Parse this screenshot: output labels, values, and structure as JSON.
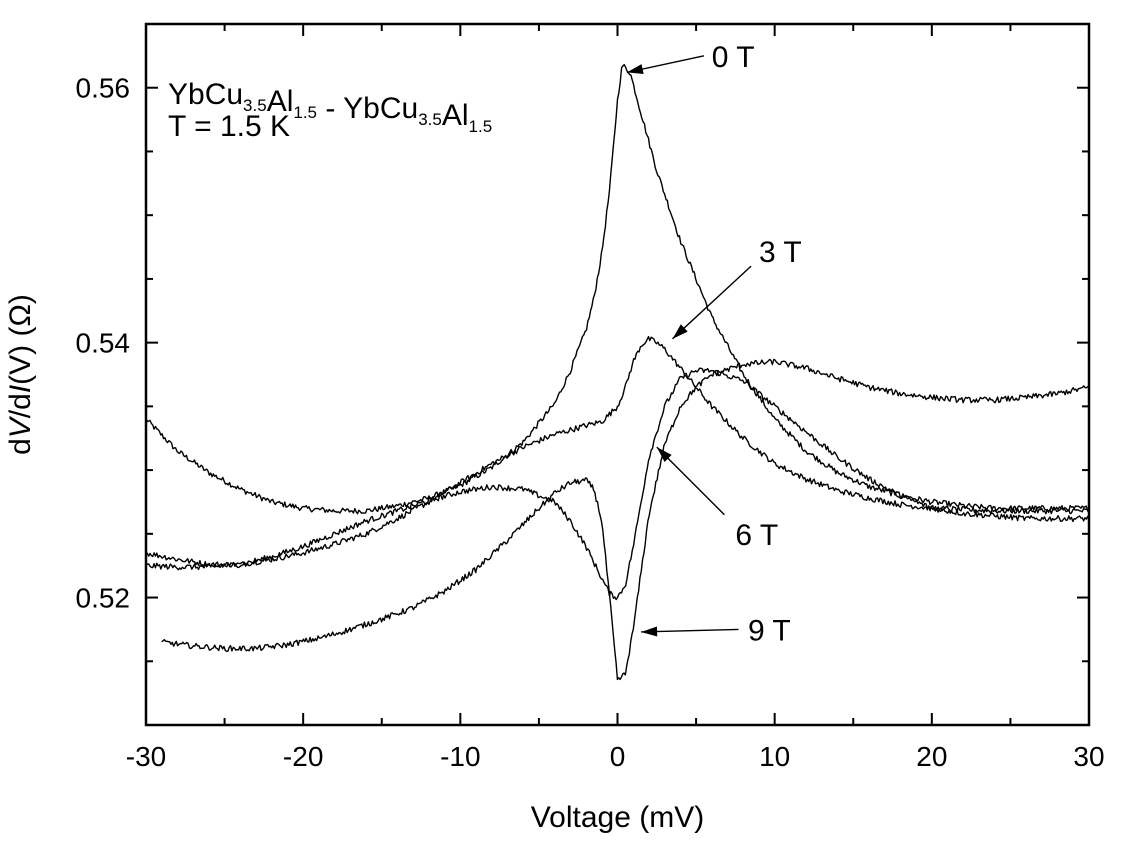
{
  "chart_data": {
    "type": "line",
    "title": "",
    "xlabel": "Voltage (mV)",
    "ylabel_parts": [
      "d",
      "V",
      "/d",
      "I",
      "(V)  (Ω)"
    ],
    "xlim": [
      -30,
      30
    ],
    "ylim": [
      0.51,
      0.565
    ],
    "x_ticks": [
      -30,
      -20,
      -10,
      0,
      10,
      20,
      30
    ],
    "x_tick_labels": [
      "-30",
      "-20",
      "-10",
      "0",
      "10",
      "20",
      "30"
    ],
    "y_ticks": [
      0.52,
      0.54,
      0.56
    ],
    "y_tick_labels": [
      "0.52",
      "0.54",
      "0.56"
    ],
    "grid": false,
    "legend": "none",
    "sample_label": {
      "parts": [
        {
          "t": "YbCu",
          "sub": false
        },
        {
          "t": "3.5",
          "sub": true
        },
        {
          "t": "Al",
          "sub": false
        },
        {
          "t": "1.5",
          "sub": true
        },
        {
          "t": " - YbCu",
          "sub": false
        },
        {
          "t": "3.5",
          "sub": true
        },
        {
          "t": "Al",
          "sub": false
        },
        {
          "t": "1.5",
          "sub": true
        }
      ],
      "temperature": "T = 1.5 K"
    },
    "series": [
      {
        "label": "0 T",
        "points": [
          [
            -30,
            0.534
          ],
          [
            -28,
            0.5315
          ],
          [
            -26,
            0.5298
          ],
          [
            -24,
            0.5285
          ],
          [
            -22,
            0.5275
          ],
          [
            -20,
            0.527
          ],
          [
            -18,
            0.5268
          ],
          [
            -16,
            0.5268
          ],
          [
            -14,
            0.5272
          ],
          [
            -12,
            0.5278
          ],
          [
            -10,
            0.5288
          ],
          [
            -8,
            0.5302
          ],
          [
            -6,
            0.5322
          ],
          [
            -4,
            0.5352
          ],
          [
            -3,
            0.5378
          ],
          [
            -2,
            0.541
          ],
          [
            -1.5,
            0.5435
          ],
          [
            -1,
            0.547
          ],
          [
            -0.5,
            0.552
          ],
          [
            0,
            0.559
          ],
          [
            0.3,
            0.5618
          ],
          [
            0.8,
            0.5612
          ],
          [
            1.5,
            0.558
          ],
          [
            2.5,
            0.5535
          ],
          [
            4,
            0.548
          ],
          [
            6,
            0.542
          ],
          [
            8,
            0.5375
          ],
          [
            10,
            0.534
          ],
          [
            12,
            0.5315
          ],
          [
            14,
            0.5298
          ],
          [
            16,
            0.5287
          ],
          [
            18,
            0.528
          ],
          [
            20,
            0.5275
          ],
          [
            22,
            0.5272
          ],
          [
            24,
            0.527
          ],
          [
            26,
            0.527
          ],
          [
            28,
            0.527
          ],
          [
            30,
            0.527
          ]
        ]
      },
      {
        "label": "3 T",
        "points": [
          [
            -30,
            0.5235
          ],
          [
            -28,
            0.523
          ],
          [
            -26,
            0.5226
          ],
          [
            -24,
            0.5226
          ],
          [
            -22,
            0.523
          ],
          [
            -20,
            0.5235
          ],
          [
            -18,
            0.5242
          ],
          [
            -16,
            0.525
          ],
          [
            -14,
            0.5262
          ],
          [
            -12,
            0.5275
          ],
          [
            -10,
            0.529
          ],
          [
            -8,
            0.5305
          ],
          [
            -6,
            0.5318
          ],
          [
            -4,
            0.5328
          ],
          [
            -2,
            0.5335
          ],
          [
            -1,
            0.5338
          ],
          [
            0,
            0.535
          ],
          [
            0.5,
            0.5365
          ],
          [
            1,
            0.5385
          ],
          [
            1.5,
            0.5398
          ],
          [
            2,
            0.5403
          ],
          [
            2.5,
            0.54
          ],
          [
            3,
            0.5395
          ],
          [
            4,
            0.538
          ],
          [
            5,
            0.5365
          ],
          [
            6,
            0.535
          ],
          [
            8,
            0.5325
          ],
          [
            10,
            0.5305
          ],
          [
            12,
            0.5293
          ],
          [
            14,
            0.5284
          ],
          [
            16,
            0.5278
          ],
          [
            18,
            0.5273
          ],
          [
            20,
            0.527
          ],
          [
            22,
            0.5269
          ],
          [
            24,
            0.5268
          ],
          [
            26,
            0.5268
          ],
          [
            28,
            0.5268
          ],
          [
            30,
            0.5268
          ]
        ]
      },
      {
        "label": "6 T",
        "points": [
          [
            -30,
            0.5225
          ],
          [
            -28,
            0.5224
          ],
          [
            -26,
            0.5224
          ],
          [
            -24,
            0.5226
          ],
          [
            -22,
            0.5232
          ],
          [
            -20,
            0.524
          ],
          [
            -18,
            0.525
          ],
          [
            -16,
            0.526
          ],
          [
            -14,
            0.5268
          ],
          [
            -12,
            0.5276
          ],
          [
            -10,
            0.5283
          ],
          [
            -8,
            0.5287
          ],
          [
            -6,
            0.5285
          ],
          [
            -4,
            0.5275
          ],
          [
            -3,
            0.526
          ],
          [
            -2,
            0.524
          ],
          [
            -1,
            0.5215
          ],
          [
            -0.5,
            0.5203
          ],
          [
            0,
            0.52
          ],
          [
            0.5,
            0.521
          ],
          [
            1,
            0.524
          ],
          [
            1.5,
            0.5275
          ],
          [
            2,
            0.531
          ],
          [
            3,
            0.535
          ],
          [
            4,
            0.5372
          ],
          [
            5,
            0.5378
          ],
          [
            6,
            0.5378
          ],
          [
            8,
            0.537
          ],
          [
            10,
            0.535
          ],
          [
            12,
            0.533
          ],
          [
            14,
            0.531
          ],
          [
            16,
            0.5293
          ],
          [
            18,
            0.528
          ],
          [
            20,
            0.527
          ],
          [
            22,
            0.5266
          ],
          [
            24,
            0.5264
          ],
          [
            26,
            0.5262
          ],
          [
            28,
            0.5262
          ],
          [
            30,
            0.5262
          ]
        ]
      },
      {
        "label": "9 T",
        "points": [
          [
            -29,
            0.5165
          ],
          [
            -27,
            0.5162
          ],
          [
            -25,
            0.516
          ],
          [
            -23,
            0.516
          ],
          [
            -21,
            0.5163
          ],
          [
            -19,
            0.5168
          ],
          [
            -17,
            0.5175
          ],
          [
            -15,
            0.5183
          ],
          [
            -13,
            0.5192
          ],
          [
            -11,
            0.5205
          ],
          [
            -9,
            0.5222
          ],
          [
            -7,
            0.5245
          ],
          [
            -5,
            0.527
          ],
          [
            -4,
            0.5282
          ],
          [
            -3,
            0.529
          ],
          [
            -2,
            0.5292
          ],
          [
            -1.5,
            0.5285
          ],
          [
            -1,
            0.526
          ],
          [
            -0.5,
            0.52
          ],
          [
            0,
            0.5135
          ],
          [
            0.5,
            0.514
          ],
          [
            1,
            0.5175
          ],
          [
            1.5,
            0.522
          ],
          [
            2,
            0.5265
          ],
          [
            3,
            0.532
          ],
          [
            4,
            0.535
          ],
          [
            5,
            0.5365
          ],
          [
            6,
            0.5375
          ],
          [
            8,
            0.5383
          ],
          [
            10,
            0.5385
          ],
          [
            12,
            0.538
          ],
          [
            14,
            0.5372
          ],
          [
            16,
            0.5365
          ],
          [
            18,
            0.536
          ],
          [
            20,
            0.5357
          ],
          [
            22,
            0.5355
          ],
          [
            24,
            0.5355
          ],
          [
            26,
            0.5357
          ],
          [
            28,
            0.536
          ],
          [
            30,
            0.5365
          ]
        ]
      }
    ],
    "annotations": [
      {
        "text": "0 T",
        "tip": [
          0.6,
          0.5612
        ],
        "tail": [
          5.5,
          0.5625
        ],
        "text_at": [
          6,
          0.5625
        ]
      },
      {
        "text": "3 T",
        "tip": [
          3.5,
          0.5403
        ],
        "tail": [
          8.5,
          0.546
        ],
        "text_at": [
          9,
          0.5472
        ]
      },
      {
        "text": "6 T",
        "tip": [
          2.5,
          0.5318
        ],
        "tail": [
          6.8,
          0.5265
        ],
        "text_at": [
          7.5,
          0.525
        ]
      },
      {
        "text": "9 T",
        "tip": [
          1.5,
          0.5173
        ],
        "tail": [
          7.7,
          0.5175
        ],
        "text_at": [
          8.3,
          0.5175
        ]
      }
    ]
  }
}
